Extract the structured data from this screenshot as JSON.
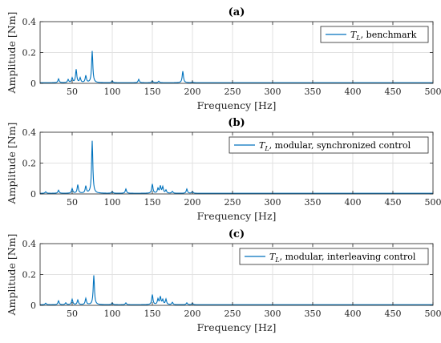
{
  "chart_data": [
    {
      "type": "line",
      "panel_title": "(a)",
      "xlabel": "Frequency [Hz]",
      "ylabel": "Amplitude [Nm]",
      "xlim": [
        10,
        500
      ],
      "ylim": [
        0,
        0.4
      ],
      "xticks": [
        50,
        100,
        150,
        200,
        250,
        300,
        350,
        400,
        450,
        500
      ],
      "yticks": [
        0,
        0.2,
        0.4
      ],
      "grid": true,
      "legend_position": "top-right",
      "series": [
        {
          "symbol": "T",
          "subscript": "L",
          "name": ", benchmark",
          "color": "#0072BD",
          "peaks": [
            [
              33,
              0.025
            ],
            [
              45,
              0.02
            ],
            [
              50,
              0.03
            ],
            [
              55,
              0.085
            ],
            [
              60,
              0.03
            ],
            [
              67,
              0.045
            ],
            [
              75,
              0.205
            ],
            [
              100,
              0.012
            ],
            [
              133,
              0.022
            ],
            [
              150,
              0.012
            ],
            [
              158,
              0.01
            ],
            [
              188,
              0.075
            ],
            [
              200,
              0.006
            ]
          ]
        }
      ]
    },
    {
      "type": "line",
      "panel_title": "(b)",
      "xlabel": "Frequency [Hz]",
      "ylabel": "Amplitude [Nm]",
      "xlim": [
        10,
        500
      ],
      "ylim": [
        0,
        0.4
      ],
      "xticks": [
        50,
        100,
        150,
        200,
        250,
        300,
        350,
        400,
        450,
        500
      ],
      "yticks": [
        0,
        0.2,
        0.4
      ],
      "grid": true,
      "legend_position": "top-right",
      "series": [
        {
          "symbol": "T",
          "subscript": "L",
          "name": ", modular, synchronized control",
          "color": "#0072BD",
          "peaks": [
            [
              17,
              0.01
            ],
            [
              33,
              0.02
            ],
            [
              50,
              0.03
            ],
            [
              57,
              0.055
            ],
            [
              67,
              0.045
            ],
            [
              75,
              0.34
            ],
            [
              100,
              0.012
            ],
            [
              117,
              0.028
            ],
            [
              150,
              0.06
            ],
            [
              157,
              0.03
            ],
            [
              160,
              0.045
            ],
            [
              163,
              0.04
            ],
            [
              167,
              0.02
            ],
            [
              175,
              0.012
            ],
            [
              193,
              0.028
            ],
            [
              200,
              0.012
            ]
          ]
        }
      ]
    },
    {
      "type": "line",
      "panel_title": "(c)",
      "xlabel": "Frequency [Hz]",
      "ylabel": "Amplitude [Nm]",
      "xlim": [
        10,
        500
      ],
      "ylim": [
        0,
        0.4
      ],
      "xticks": [
        50,
        100,
        150,
        200,
        250,
        300,
        350,
        400,
        450,
        500
      ],
      "yticks": [
        0,
        0.2,
        0.4
      ],
      "grid": true,
      "legend_position": "top-right",
      "series": [
        {
          "symbol": "T",
          "subscript": "L",
          "name": ", modular, interleaving control",
          "color": "#0072BD",
          "peaks": [
            [
              17,
              0.01
            ],
            [
              33,
              0.025
            ],
            [
              42,
              0.012
            ],
            [
              50,
              0.035
            ],
            [
              57,
              0.03
            ],
            [
              67,
              0.04
            ],
            [
              77,
              0.19
            ],
            [
              100,
              0.012
            ],
            [
              117,
              0.012
            ],
            [
              150,
              0.065
            ],
            [
              157,
              0.035
            ],
            [
              160,
              0.05
            ],
            [
              163,
              0.03
            ],
            [
              167,
              0.035
            ],
            [
              175,
              0.015
            ],
            [
              193,
              0.012
            ],
            [
              200,
              0.01
            ]
          ]
        }
      ]
    }
  ]
}
